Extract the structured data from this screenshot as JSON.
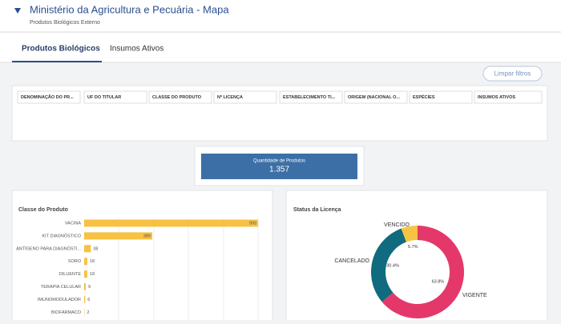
{
  "header": {
    "title": "Ministério da Agricultura e Pecuária - Mapa",
    "subtitle": "Produtos Biológicos Externo"
  },
  "tabs": [
    "Produtos Biológicos",
    "Insumos Ativos"
  ],
  "clear_button": "Limpar filtros",
  "filters": [
    "DENOMINAÇÃO DO PR...",
    "UF DO TITULAR",
    "CLASSE DO PRODUTO",
    "Nº LICENÇA",
    "ESTABELECIMENTO TI...",
    "ORIGEM (NACIONAL O...",
    "ESPÉCIES",
    "INSUMOS ATIVOS"
  ],
  "kpi": {
    "label": "Quantidade de Produtos",
    "value": "1.357"
  },
  "bar_chart": {
    "type": "bar",
    "title": "Classe do Produto",
    "categories": [
      "VACINA",
      "KIT DIAGNÓSTICO",
      "ANTÍGENO PARA DIAGNÓSTI...",
      "SORO",
      "DILUENTE",
      "TERAPIA CELULAR",
      "IMUNOMODULADOR",
      "BIOFÁRMACO"
    ],
    "values": [
      993,
      389,
      38,
      18,
      18,
      9,
      6,
      2
    ],
    "color": "#f7c244"
  },
  "donut_chart": {
    "type": "donut",
    "title": "Status da Licença",
    "categories": [
      "VIGENTE",
      "CANCELADO",
      "VENCIDO"
    ],
    "values": [
      63.8,
      30.4,
      5.7
    ],
    "value_labels": [
      "63.8%",
      "30.4%",
      "5.7%"
    ],
    "colors": [
      "#e5386a",
      "#0f6b7d",
      "#f6c343"
    ]
  }
}
